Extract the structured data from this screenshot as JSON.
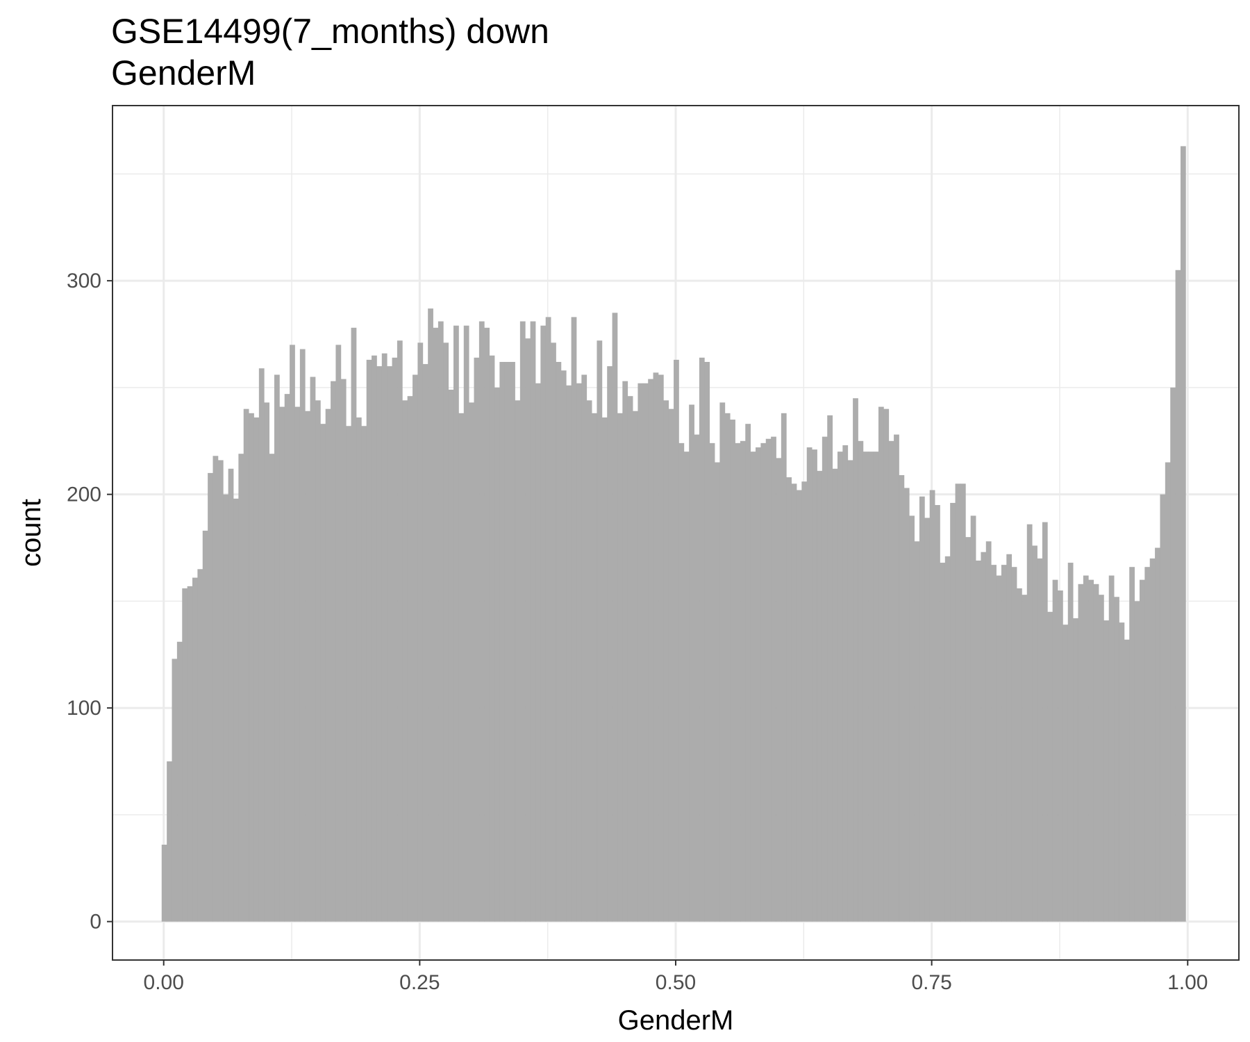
{
  "chart_data": {
    "type": "bar",
    "title": "GSE14499(7_months) down",
    "subtitle": "GenderM",
    "xlabel": "GenderM",
    "ylabel": "count",
    "xlim": [
      -0.05,
      1.05
    ],
    "ylim": [
      -18,
      382
    ],
    "x_ticks": [
      0.0,
      0.25,
      0.5,
      0.75,
      1.0
    ],
    "x_tick_labels": [
      "0.00",
      "0.25",
      "0.50",
      "0.75",
      "1.00"
    ],
    "y_ticks": [
      0,
      100,
      200,
      300
    ],
    "y_tick_labels": [
      "0",
      "100",
      "200",
      "300"
    ],
    "grid": true,
    "bin_start": -0.002,
    "bin_width": 0.005,
    "bar_color": "#a9a9a9",
    "values": [
      36,
      75,
      123,
      131,
      156,
      157,
      161,
      165,
      183,
      210,
      218,
      216,
      200,
      212,
      198,
      219,
      240,
      238,
      236,
      259,
      243,
      219,
      256,
      241,
      247,
      270,
      241,
      268,
      239,
      255,
      244,
      233,
      240,
      253,
      270,
      254,
      232,
      278,
      236,
      232,
      263,
      265,
      260,
      266,
      260,
      264,
      272,
      244,
      246,
      256,
      271,
      261,
      287,
      278,
      281,
      271,
      249,
      279,
      238,
      279,
      243,
      264,
      281,
      278,
      265,
      250,
      262,
      262,
      262,
      244,
      281,
      273,
      281,
      252,
      279,
      283,
      271,
      262,
      258,
      251,
      283,
      252,
      256,
      244,
      238,
      272,
      236,
      260,
      285,
      238,
      253,
      246,
      239,
      252,
      252,
      254,
      257,
      256,
      244,
      240,
      263,
      224,
      220,
      242,
      228,
      264,
      262,
      224,
      215,
      243,
      238,
      235,
      224,
      225,
      233,
      220,
      222,
      224,
      226,
      227,
      217,
      238,
      208,
      205,
      202,
      206,
      222,
      221,
      211,
      227,
      237,
      212,
      220,
      223,
      216,
      245,
      225,
      220,
      220,
      220,
      241,
      240,
      225,
      228,
      209,
      203,
      190,
      178,
      199,
      189,
      202,
      195,
      168,
      171,
      196,
      205,
      205,
      180,
      190,
      169,
      173,
      178,
      167,
      162,
      167,
      172,
      166,
      156,
      153,
      186,
      176,
      170,
      187,
      145,
      160,
      155,
      139,
      168,
      142,
      158,
      162,
      160,
      158,
      153,
      141,
      162,
      152,
      140,
      132,
      166,
      150,
      160,
      166,
      170,
      175,
      200,
      215,
      250,
      305,
      363
    ]
  }
}
